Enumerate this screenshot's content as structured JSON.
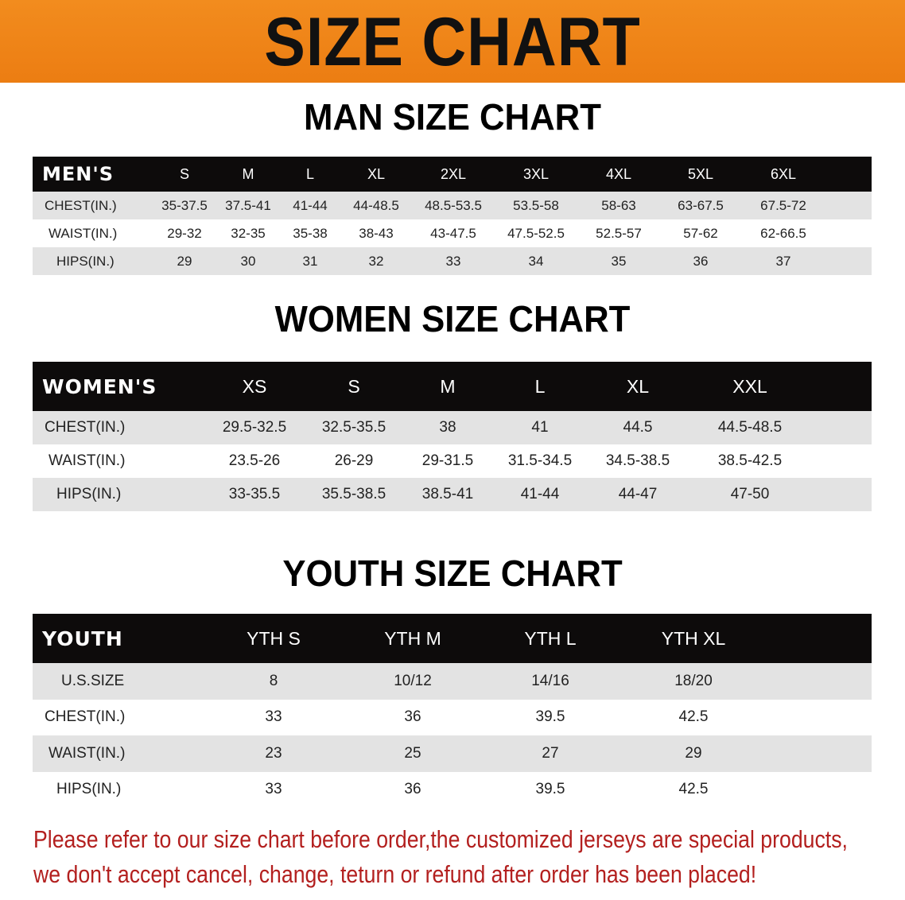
{
  "banner_title": "SIZE CHART",
  "colors": {
    "banner": "#f08a1c",
    "header_row": "#0d0b0b",
    "note": "#b3201f"
  },
  "men": {
    "title": "MAN SIZE CHART",
    "header": [
      "MEN'S",
      "S",
      "M",
      "L",
      "XL",
      "2XL",
      "3XL",
      "4XL",
      "5XL",
      "6XL"
    ],
    "rows": [
      [
        "CHEST(IN.)",
        "35-37.5",
        "37.5-41",
        "41-44",
        "44-48.5",
        "48.5-53.5",
        "53.5-58",
        "58-63",
        "63-67.5",
        "67.5-72"
      ],
      [
        "WAIST(IN.)",
        "29-32",
        "32-35",
        "35-38",
        "38-43",
        "43-47.5",
        "47.5-52.5",
        "52.5-57",
        "57-62",
        "62-66.5"
      ],
      [
        "HIPS(IN.)",
        "29",
        "30",
        "31",
        "32",
        "33",
        "34",
        "35",
        "36",
        "37"
      ]
    ]
  },
  "women": {
    "title": "WOMEN SIZE CHART",
    "header": [
      "WOMEN'S",
      "XS",
      "S",
      "M",
      "L",
      "XL",
      "XXL"
    ],
    "rows": [
      [
        "CHEST(IN.)",
        "29.5-32.5",
        "32.5-35.5",
        "38",
        "41",
        "44.5",
        "44.5-48.5"
      ],
      [
        "WAIST(IN.)",
        "23.5-26",
        "26-29",
        "29-31.5",
        "31.5-34.5",
        "34.5-38.5",
        "38.5-42.5"
      ],
      [
        "HIPS(IN.)",
        "33-35.5",
        "35.5-38.5",
        "38.5-41",
        "41-44",
        "44-47",
        "47-50"
      ]
    ]
  },
  "youth": {
    "title": "YOUTH SIZE CHART",
    "header": [
      "YOUTH",
      "YTH S",
      "YTH M",
      "YTH L",
      "YTH XL"
    ],
    "rows": [
      [
        "U.S.SIZE",
        "8",
        "10/12",
        "14/16",
        "18/20"
      ],
      [
        "CHEST(IN.)",
        "33",
        "36",
        "39.5",
        "42.5"
      ],
      [
        "WAIST(IN.)",
        "23",
        "25",
        "27",
        "29"
      ],
      [
        "HIPS(IN.)",
        "33",
        "36",
        "39.5",
        "42.5"
      ]
    ]
  },
  "notice": [
    "Please refer to our size chart before order,the customized jerseys are special products,",
    "we don't accept cancel, change, teturn or refund after order has been placed!"
  ]
}
